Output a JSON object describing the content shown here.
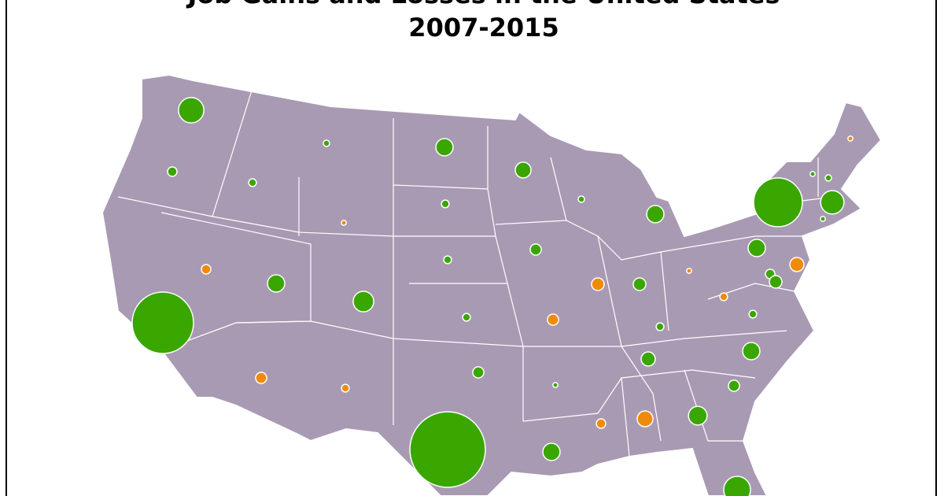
{
  "header": {
    "title": "Job Gains and Losses in the United States",
    "subtitle": "2007-2015"
  },
  "map": {
    "land_color": "#a99ab3",
    "border_color": "#ffffff",
    "gain_color": "#3aa600",
    "loss_color": "#f08a0a",
    "markers": [
      {
        "value": 130
      },
      {
        "value": 18
      },
      {
        "value": 12
      },
      {
        "value": 8
      },
      {
        "value": 60
      },
      {
        "value": 50
      },
      {
        "value": 8
      },
      {
        "value": 60
      },
      {
        "value": 480
      },
      {
        "value": 5
      },
      {
        "value": 8
      },
      {
        "value": -5
      },
      {
        "value": 110
      },
      {
        "value": 5
      },
      {
        "value": 60
      },
      {
        "value": -40
      },
      {
        "value": 18
      },
      {
        "value": 32
      },
      {
        "value": -5
      },
      {
        "value": 12
      },
      {
        "value": 12
      },
      {
        "value": 25
      },
      {
        "value": -32
      },
      {
        "value": 32
      },
      {
        "value": -5
      },
      {
        "value": -12
      },
      {
        "value": 12
      },
      {
        "value": 12
      },
      {
        "value": -18
      },
      {
        "value": 60
      },
      {
        "value": 85
      },
      {
        "value": 12
      },
      {
        "value": -25
      },
      {
        "value": 760
      },
      {
        "value": -25
      },
      {
        "value": -12
      },
      {
        "value": 25
      },
      {
        "value": 5
      },
      {
        "value": 40
      },
      {
        "value": 60
      },
      {
        "value": 25
      },
      {
        "value": 70
      },
      {
        "value": -50
      },
      {
        "value": -18
      },
      {
        "value": 60
      },
      {
        "value": 1150
      },
      {
        "value": 145
      }
    ]
  }
}
